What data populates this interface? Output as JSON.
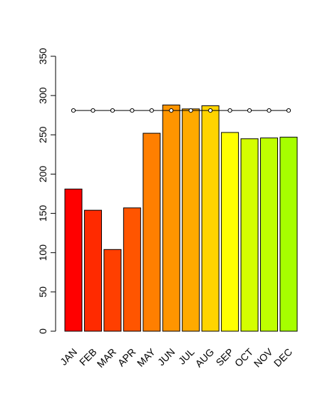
{
  "chart_data": {
    "type": "bar",
    "categories": [
      "JAN",
      "FEB",
      "MAR",
      "APR",
      "MAY",
      "JUN",
      "JUL",
      "AUG",
      "SEP",
      "OCT",
      "NOV",
      "DEC"
    ],
    "values": [
      181,
      154,
      104,
      157,
      252,
      288,
      283,
      287,
      253,
      245,
      246,
      247
    ],
    "colors": [
      "#ff0000",
      "#ff2a00",
      "#ff3f00",
      "#ff5500",
      "#ff7f00",
      "#ff9500",
      "#ffaa00",
      "#ffd400",
      "#ffff00",
      "#d4ff00",
      "#bfff00",
      "#a6ff00"
    ],
    "reference_line": {
      "value": 281,
      "marker": "open-circle"
    },
    "ylim": [
      0,
      350
    ],
    "yticks": [
      0,
      50,
      100,
      150,
      200,
      250,
      300,
      350
    ],
    "grid": false,
    "legend": "none"
  }
}
